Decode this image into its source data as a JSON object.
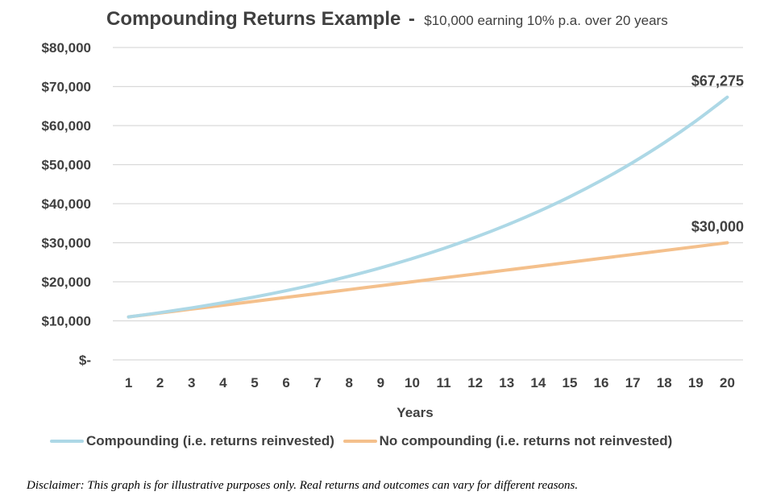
{
  "header": {
    "title": "Compounding Returns Example",
    "separator": "-",
    "subtitle": "$10,000 earning 10% p.a. over 20 years"
  },
  "chart_data": {
    "type": "line",
    "x": [
      1,
      2,
      3,
      4,
      5,
      6,
      7,
      8,
      9,
      10,
      11,
      12,
      13,
      14,
      15,
      16,
      17,
      18,
      19,
      20
    ],
    "xtick_labels": [
      "1",
      "2",
      "3",
      "4",
      "5",
      "6",
      "7",
      "8",
      "9",
      "10",
      "11",
      "12",
      "13",
      "14",
      "15",
      "16",
      "17",
      "18",
      "19",
      "20"
    ],
    "xlabel": "Years",
    "ylabel": "",
    "ylim": [
      0,
      80000
    ],
    "yticks": [
      0,
      10000,
      20000,
      30000,
      40000,
      50000,
      60000,
      70000,
      80000
    ],
    "ytick_labels": [
      "$-",
      "$10,000",
      "$20,000",
      "$30,000",
      "$40,000",
      "$50,000",
      "$60,000",
      "$70,000",
      "$80,000"
    ],
    "grid": true,
    "legend_position": "bottom",
    "series": [
      {
        "name": "Compounding (i.e. returns reinvested)",
        "color": "#add8e6",
        "values": [
          11000,
          12100,
          13310,
          14641,
          16105,
          17716,
          19487,
          21436,
          23579,
          25937,
          28531,
          31384,
          34523,
          37975,
          41772,
          45950,
          50545,
          55599,
          61159,
          67275
        ],
        "end_label": "$67,275"
      },
      {
        "name": "No compounding (i.e. returns not reinvested)",
        "color": "#f4c08c",
        "values": [
          11000,
          12000,
          13000,
          14000,
          15000,
          16000,
          17000,
          18000,
          19000,
          20000,
          21000,
          22000,
          23000,
          24000,
          25000,
          26000,
          27000,
          28000,
          29000,
          30000
        ],
        "end_label": "$30,000"
      }
    ]
  },
  "footer": {
    "disclaimer": "Disclaimer: This graph is for illustrative purposes only. Real returns and outcomes can vary for different reasons."
  }
}
